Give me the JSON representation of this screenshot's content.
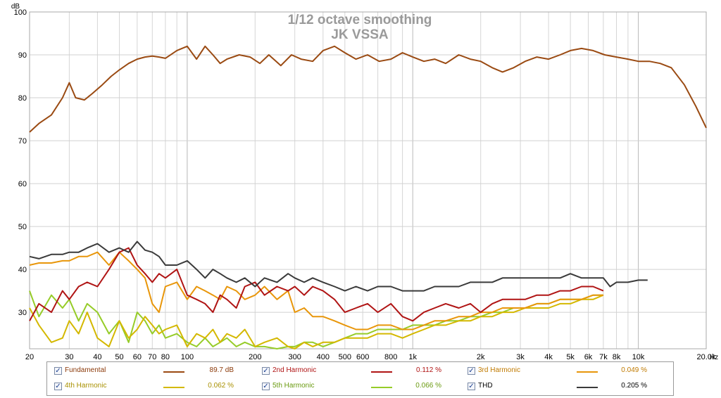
{
  "chart_data": {
    "type": "line",
    "title": "1/12 octave smoothing",
    "subtitle": "JK VSSA",
    "ylabel": "dB",
    "x_unit_label": "Hz",
    "x_scale": "log",
    "xlim": [
      20,
      20000
    ],
    "ylim": [
      21.5,
      100
    ],
    "grid": true,
    "y_ticks": [
      30,
      40,
      50,
      60,
      70,
      80,
      90,
      100
    ],
    "x_ticks": [
      {
        "value": 20,
        "label": "20"
      },
      {
        "value": 30,
        "label": "30"
      },
      {
        "value": 40,
        "label": "40"
      },
      {
        "value": 50,
        "label": "50"
      },
      {
        "value": 60,
        "label": "60"
      },
      {
        "value": 70,
        "label": "70"
      },
      {
        "value": 80,
        "label": "80"
      },
      {
        "value": 100,
        "label": "100"
      },
      {
        "value": 200,
        "label": "200"
      },
      {
        "value": 300,
        "label": "300"
      },
      {
        "value": 400,
        "label": "400"
      },
      {
        "value": 500,
        "label": "500"
      },
      {
        "value": 600,
        "label": "600"
      },
      {
        "value": 800,
        "label": "800"
      },
      {
        "value": 1000,
        "label": "1k"
      },
      {
        "value": 2000,
        "label": "2k"
      },
      {
        "value": 3000,
        "label": "3k"
      },
      {
        "value": 4000,
        "label": "4k"
      },
      {
        "value": 5000,
        "label": "5k"
      },
      {
        "value": 6000,
        "label": "6k"
      },
      {
        "value": 7000,
        "label": "7k"
      },
      {
        "value": 8000,
        "label": "8k"
      },
      {
        "value": 10000,
        "label": "10k"
      },
      {
        "value": 20000,
        "label": "20.0k"
      }
    ],
    "legend_position": "bottom",
    "series": [
      {
        "name": "Fundamental",
        "value": "89.7 dB",
        "color": "#9a4a12",
        "x": [
          20,
          22,
          25,
          28,
          30,
          32,
          35,
          38,
          42,
          46,
          50,
          55,
          60,
          65,
          70,
          75,
          80,
          90,
          100,
          110,
          120,
          130,
          140,
          150,
          170,
          190,
          210,
          230,
          260,
          290,
          320,
          360,
          400,
          450,
          500,
          560,
          630,
          710,
          800,
          900,
          1000,
          1120,
          1250,
          1400,
          1600,
          1800,
          2000,
          2250,
          2500,
          2800,
          3150,
          3550,
          4000,
          4500,
          5000,
          5600,
          6300,
          7100,
          8000,
          9000,
          10000,
          11200,
          12500,
          14000,
          16000,
          18000,
          20000
        ],
        "values": [
          72,
          74,
          76,
          80,
          83.5,
          80,
          79.5,
          81,
          83,
          85,
          86.5,
          88,
          89,
          89.5,
          89.7,
          89.5,
          89.2,
          91,
          92,
          89,
          92,
          90,
          88,
          89,
          90,
          89.5,
          88,
          90,
          87.5,
          90,
          89,
          88.5,
          91,
          92,
          90.5,
          89,
          90,
          88.5,
          89,
          90.5,
          89.5,
          88.5,
          89,
          88,
          90,
          89,
          88.5,
          87,
          86,
          87,
          88.5,
          89.5,
          89,
          90,
          91,
          91.5,
          91,
          90,
          89.5,
          89,
          88.5,
          88.5,
          88,
          87,
          83,
          78,
          73
        ]
      },
      {
        "name": "2nd Harmonic",
        "value": "0.112 %",
        "color": "#b01414",
        "x": [
          20,
          22,
          25,
          28,
          30,
          33,
          36,
          40,
          45,
          50,
          55,
          60,
          65,
          70,
          75,
          80,
          90,
          100,
          110,
          120,
          130,
          140,
          150,
          165,
          180,
          200,
          220,
          250,
          280,
          300,
          330,
          360,
          400,
          450,
          500,
          560,
          630,
          700,
          800,
          900,
          1000,
          1120,
          1250,
          1400,
          1600,
          1800,
          2000,
          2250,
          2500,
          2800,
          3150,
          3550,
          4000,
          4500,
          5000,
          5600,
          6300,
          7000
        ],
        "values": [
          28,
          32,
          30,
          35,
          33,
          36,
          37,
          36,
          40,
          44,
          45,
          41,
          39,
          37,
          39,
          38,
          40,
          34,
          33,
          32,
          30,
          34,
          33,
          31,
          36,
          37,
          34,
          36,
          35,
          36,
          34,
          36,
          35,
          33,
          30,
          31,
          32,
          30,
          32,
          29,
          28,
          30,
          31,
          32,
          31,
          32,
          30,
          32,
          33,
          33,
          33,
          34,
          34,
          35,
          35,
          36,
          36,
          35
        ]
      },
      {
        "name": "3rd Harmonic",
        "value": "0.049 %",
        "color": "#e8960a",
        "x": [
          20,
          22,
          25,
          28,
          30,
          33,
          36,
          40,
          45,
          50,
          55,
          60,
          65,
          70,
          75,
          80,
          90,
          100,
          110,
          120,
          130,
          140,
          150,
          165,
          180,
          200,
          220,
          250,
          280,
          300,
          330,
          360,
          400,
          450,
          500,
          560,
          630,
          700,
          800,
          900,
          1000,
          1120,
          1250,
          1400,
          1600,
          1800,
          2000,
          2250,
          2500,
          2800,
          3150,
          3550,
          4000,
          4500,
          5000,
          5600,
          6300,
          7000
        ],
        "values": [
          41,
          41.5,
          41.5,
          42,
          42,
          43,
          43,
          44,
          41,
          44,
          42,
          40,
          38,
          32,
          30,
          36,
          37,
          33,
          36,
          35,
          34,
          33,
          36,
          35,
          33,
          34,
          36,
          33,
          35,
          30,
          31,
          29,
          29,
          28,
          27,
          26,
          26,
          27,
          27,
          26,
          26,
          27,
          28,
          28,
          29,
          29,
          30,
          30,
          31,
          31,
          31,
          32,
          32,
          33,
          33,
          33,
          34,
          34
        ]
      },
      {
        "name": "4th Harmonic",
        "value": "0.062 %",
        "color": "#d4b800",
        "x": [
          20,
          22,
          25,
          28,
          30,
          33,
          36,
          40,
          45,
          50,
          55,
          60,
          65,
          70,
          75,
          80,
          90,
          100,
          110,
          120,
          130,
          140,
          150,
          165,
          180,
          200,
          220,
          250,
          280,
          300,
          330,
          360,
          400,
          450,
          500,
          560,
          630,
          700,
          800,
          900,
          1000,
          1120,
          1250,
          1400,
          1600,
          1800,
          2000,
          2250,
          2500,
          2800,
          3150,
          3550,
          4000,
          4500,
          5000,
          5600,
          6300,
          7000
        ],
        "values": [
          31,
          27,
          23,
          24,
          28,
          25,
          30,
          24,
          22,
          28,
          24,
          26,
          29,
          27,
          25,
          26,
          27,
          22,
          25,
          24,
          26,
          23,
          25,
          24,
          26,
          22,
          23,
          24,
          22,
          21.5,
          23,
          22,
          23,
          23,
          24,
          24,
          24,
          25,
          25,
          24,
          25,
          26,
          27,
          27,
          28,
          28,
          29,
          29,
          30,
          30,
          31,
          31,
          31,
          32,
          32,
          33,
          33,
          34
        ]
      },
      {
        "name": "5th Harmonic",
        "value": "0.066 %",
        "color": "#96cc28",
        "x": [
          20,
          22,
          25,
          28,
          30,
          33,
          36,
          40,
          45,
          50,
          55,
          60,
          65,
          70,
          75,
          80,
          90,
          100,
          110,
          120,
          130,
          140,
          150,
          165,
          180,
          200,
          220,
          250,
          280,
          300,
          330,
          360,
          400,
          450,
          500,
          560,
          630,
          700,
          800,
          900,
          1000,
          1120,
          1250,
          1400,
          1600,
          1800,
          2000,
          2250,
          2500,
          2800,
          3150,
          3550,
          4000,
          4500,
          5000,
          5600,
          6300,
          7000
        ],
        "values": [
          35,
          29,
          34,
          31,
          33,
          28,
          32,
          30,
          25,
          28,
          23,
          30,
          28,
          25,
          27,
          24,
          25,
          23,
          22,
          24,
          22,
          23,
          24,
          22,
          23,
          22,
          22,
          21.5,
          22,
          22,
          23,
          23,
          22,
          23,
          24,
          25,
          25,
          26,
          26,
          26,
          27,
          27,
          27,
          28,
          28,
          29,
          29,
          30,
          30,
          31,
          31,
          32,
          32,
          33,
          33,
          33,
          34,
          34
        ]
      },
      {
        "name": "THD",
        "value": "0.205 %",
        "color": "#3a3a3a",
        "x": [
          20,
          22,
          25,
          28,
          30,
          33,
          36,
          40,
          45,
          50,
          55,
          60,
          65,
          70,
          75,
          80,
          90,
          100,
          110,
          120,
          130,
          140,
          150,
          165,
          180,
          200,
          220,
          250,
          280,
          300,
          330,
          360,
          400,
          450,
          500,
          560,
          630,
          700,
          800,
          900,
          1000,
          1120,
          1250,
          1400,
          1600,
          1800,
          2000,
          2250,
          2500,
          2800,
          3150,
          3550,
          4000,
          4500,
          5000,
          5600,
          6300,
          7000,
          7500,
          8000,
          9000,
          10000,
          11000
        ],
        "values": [
          43,
          42.5,
          43.5,
          43.5,
          44,
          44,
          45,
          46,
          44,
          45,
          44,
          46.5,
          44.5,
          44,
          43,
          41,
          41,
          42,
          40,
          38,
          40,
          39,
          38,
          37,
          38,
          36,
          38,
          37,
          39,
          38,
          37,
          38,
          37,
          36,
          35,
          36,
          35,
          36,
          36,
          35,
          35,
          35,
          36,
          36,
          36,
          37,
          37,
          37,
          38,
          38,
          38,
          38,
          38,
          38,
          39,
          38,
          38,
          38,
          36,
          37,
          37,
          37.5,
          37.5
        ]
      }
    ]
  },
  "legend_rows": [
    [
      {
        "name": "Fundamental",
        "value": "89.7 dB",
        "color": "#9a4a12",
        "label_color": "#8b3a0a"
      },
      {
        "name": "2nd Harmonic",
        "value": "0.112 %",
        "color": "#b01414",
        "label_color": "#b01414"
      },
      {
        "name": "3rd Harmonic",
        "value": "0.049 %",
        "color": "#e8960a",
        "label_color": "#c07a00"
      }
    ],
    [
      {
        "name": "4th Harmonic",
        "value": "0.062 %",
        "color": "#d4b800",
        "label_color": "#a89000"
      },
      {
        "name": "5th Harmonic",
        "value": "0.066 %",
        "color": "#96cc28",
        "label_color": "#6a9a10"
      },
      {
        "name": "THD",
        "value": "0.205 %",
        "color": "#3a3a3a",
        "label_color": "#000000"
      }
    ]
  ],
  "checkbox_glyph": "✓"
}
